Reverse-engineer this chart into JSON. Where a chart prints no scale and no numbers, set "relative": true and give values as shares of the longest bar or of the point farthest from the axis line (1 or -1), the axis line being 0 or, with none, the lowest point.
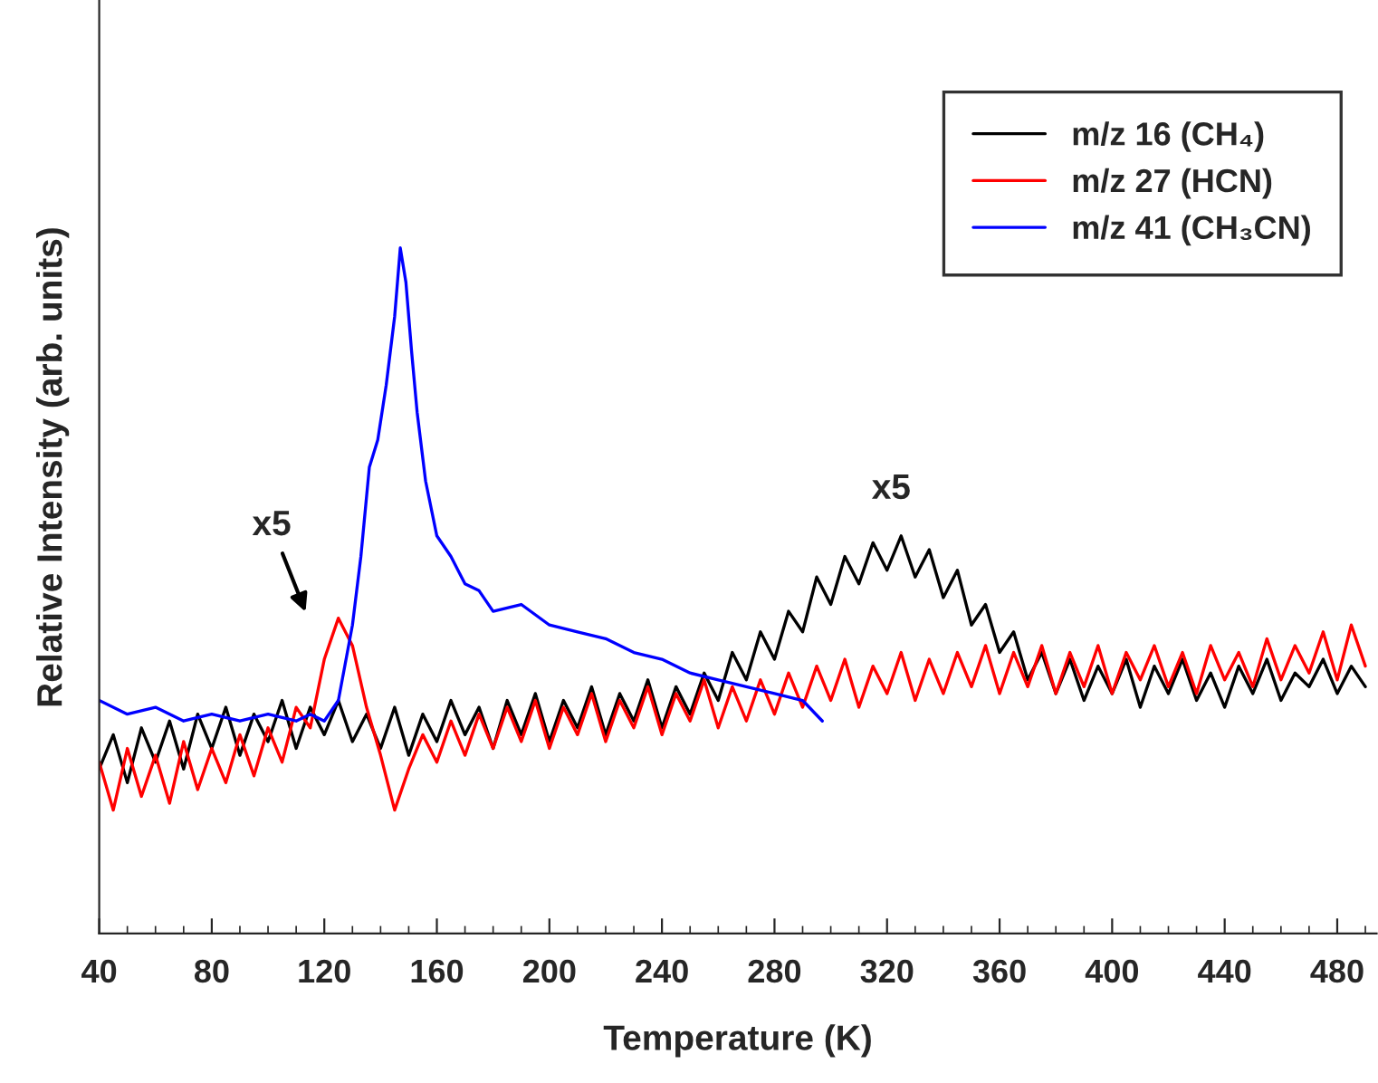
{
  "chart_data": {
    "type": "line",
    "relative": true,
    "xlabel": "Temperature (K)",
    "ylabel": "Relative Intensity (arb. units)",
    "xlim": [
      40,
      494
    ],
    "xticks": [
      40,
      80,
      120,
      160,
      200,
      240,
      280,
      320,
      360,
      400,
      440,
      480
    ],
    "tick_labels": "x",
    "grid": false,
    "legend": "top right",
    "marker": "none",
    "line_style": "solid",
    "x": [
      40,
      45,
      50,
      55,
      60,
      65,
      70,
      75,
      80,
      85,
      90,
      95,
      100,
      105,
      110,
      115,
      120,
      125,
      130,
      135,
      140,
      145,
      150,
      155,
      160,
      165,
      170,
      175,
      180,
      185,
      190,
      195,
      200,
      205,
      210,
      215,
      220,
      225,
      230,
      235,
      240,
      245,
      250,
      255,
      260,
      265,
      270,
      275,
      280,
      285,
      290,
      295,
      300,
      305,
      310,
      315,
      320,
      325,
      330,
      335,
      340,
      345,
      350,
      355,
      360,
      365,
      370,
      375,
      380,
      385,
      390,
      395,
      400,
      405,
      410,
      415,
      420,
      425,
      430,
      435,
      440,
      445,
      450,
      455,
      460,
      465,
      470,
      475,
      480,
      485,
      490
    ],
    "series": [
      {
        "name": "m/z 16 (CH₄)",
        "color": "#000000",
        "values": [
          0.24,
          0.29,
          0.22,
          0.3,
          0.25,
          0.31,
          0.24,
          0.32,
          0.27,
          0.33,
          0.26,
          0.32,
          0.28,
          0.34,
          0.27,
          0.33,
          0.29,
          0.34,
          0.28,
          0.32,
          0.27,
          0.33,
          0.26,
          0.32,
          0.28,
          0.34,
          0.29,
          0.33,
          0.27,
          0.34,
          0.29,
          0.35,
          0.28,
          0.34,
          0.3,
          0.36,
          0.29,
          0.35,
          0.31,
          0.37,
          0.3,
          0.36,
          0.32,
          0.38,
          0.34,
          0.41,
          0.37,
          0.44,
          0.4,
          0.47,
          0.44,
          0.52,
          0.48,
          0.55,
          0.51,
          0.57,
          0.53,
          0.58,
          0.52,
          0.56,
          0.49,
          0.53,
          0.45,
          0.48,
          0.41,
          0.44,
          0.37,
          0.41,
          0.35,
          0.4,
          0.34,
          0.39,
          0.35,
          0.4,
          0.33,
          0.39,
          0.35,
          0.4,
          0.34,
          0.38,
          0.33,
          0.39,
          0.35,
          0.4,
          0.34,
          0.38,
          0.36,
          0.4,
          0.35,
          0.39,
          0.36
        ]
      },
      {
        "name": "m/z 27 (HCN)",
        "color": "#ff0000",
        "values": [
          0.25,
          0.18,
          0.27,
          0.2,
          0.26,
          0.19,
          0.28,
          0.21,
          0.27,
          0.22,
          0.29,
          0.23,
          0.3,
          0.25,
          0.33,
          0.3,
          0.4,
          0.46,
          0.42,
          0.33,
          0.26,
          0.18,
          0.24,
          0.29,
          0.25,
          0.31,
          0.26,
          0.32,
          0.27,
          0.33,
          0.28,
          0.34,
          0.27,
          0.33,
          0.29,
          0.35,
          0.28,
          0.34,
          0.3,
          0.36,
          0.29,
          0.35,
          0.31,
          0.37,
          0.3,
          0.36,
          0.31,
          0.37,
          0.32,
          0.38,
          0.33,
          0.39,
          0.34,
          0.4,
          0.33,
          0.39,
          0.35,
          0.41,
          0.34,
          0.4,
          0.35,
          0.41,
          0.36,
          0.42,
          0.35,
          0.41,
          0.36,
          0.42,
          0.35,
          0.41,
          0.36,
          0.42,
          0.35,
          0.41,
          0.37,
          0.42,
          0.36,
          0.41,
          0.35,
          0.42,
          0.37,
          0.41,
          0.36,
          0.43,
          0.37,
          0.42,
          0.38,
          0.44,
          0.37,
          0.45,
          0.39
        ]
      },
      {
        "name": "m/z 41 (CH₃CN)",
        "color": "#0000ff",
        "x": [
          40,
          50,
          60,
          70,
          80,
          90,
          100,
          110,
          115,
          120,
          125,
          130,
          133,
          136,
          139,
          142,
          145,
          147,
          149,
          151,
          153,
          156,
          160,
          165,
          170,
          175,
          180,
          190,
          200,
          210,
          220,
          230,
          240,
          250,
          260,
          270,
          280,
          290,
          297
        ],
        "values": [
          0.34,
          0.32,
          0.33,
          0.31,
          0.32,
          0.31,
          0.32,
          0.31,
          0.32,
          0.31,
          0.34,
          0.45,
          0.55,
          0.68,
          0.72,
          0.8,
          0.9,
          1.0,
          0.95,
          0.85,
          0.76,
          0.66,
          0.58,
          0.55,
          0.51,
          0.5,
          0.47,
          0.48,
          0.45,
          0.44,
          0.43,
          0.41,
          0.4,
          0.38,
          0.37,
          0.36,
          0.35,
          0.34,
          0.31
        ]
      }
    ],
    "annotations": [
      "x5",
      "x5"
    ]
  }
}
